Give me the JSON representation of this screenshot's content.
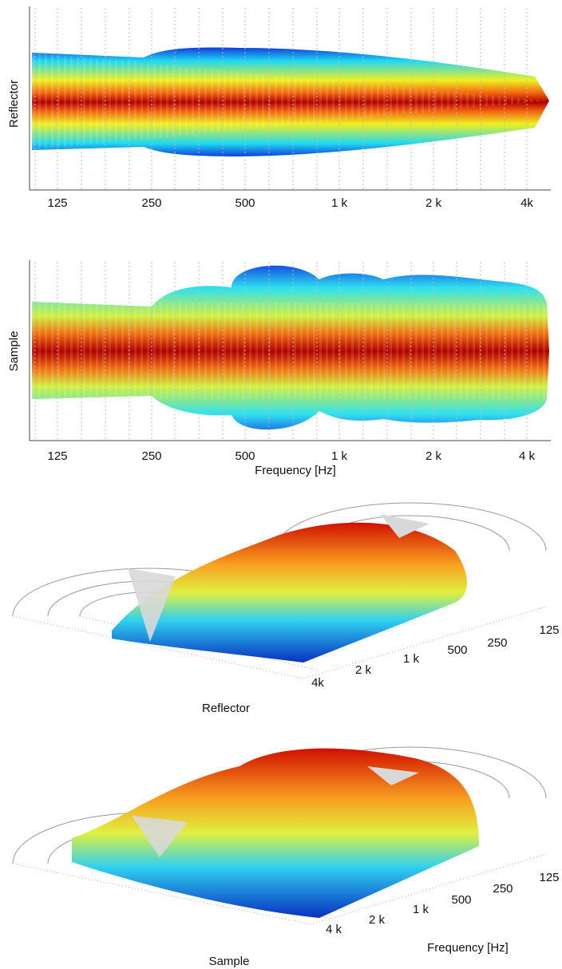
{
  "panels": [
    {
      "ylabel": "Reflector",
      "xtick_labels": [
        "125",
        "250",
        "500",
        "1 k",
        "2 k",
        "4k"
      ]
    },
    {
      "ylabel": "Sample",
      "xtick_labels": [
        "125",
        "250",
        "500",
        "1 k",
        "2 k",
        "4 k"
      ],
      "xlabel": "Frequency [Hz]"
    }
  ],
  "views3d": [
    {
      "caption": "Reflector",
      "tick_labels": [
        "125",
        "250",
        "500",
        "1 k",
        "2 k",
        "4k"
      ]
    },
    {
      "caption": "Sample",
      "tick_labels": [
        "125",
        "250",
        "500",
        "1 k",
        "2 k",
        "4 k"
      ],
      "axis_label": "Frequency [Hz]"
    }
  ]
}
